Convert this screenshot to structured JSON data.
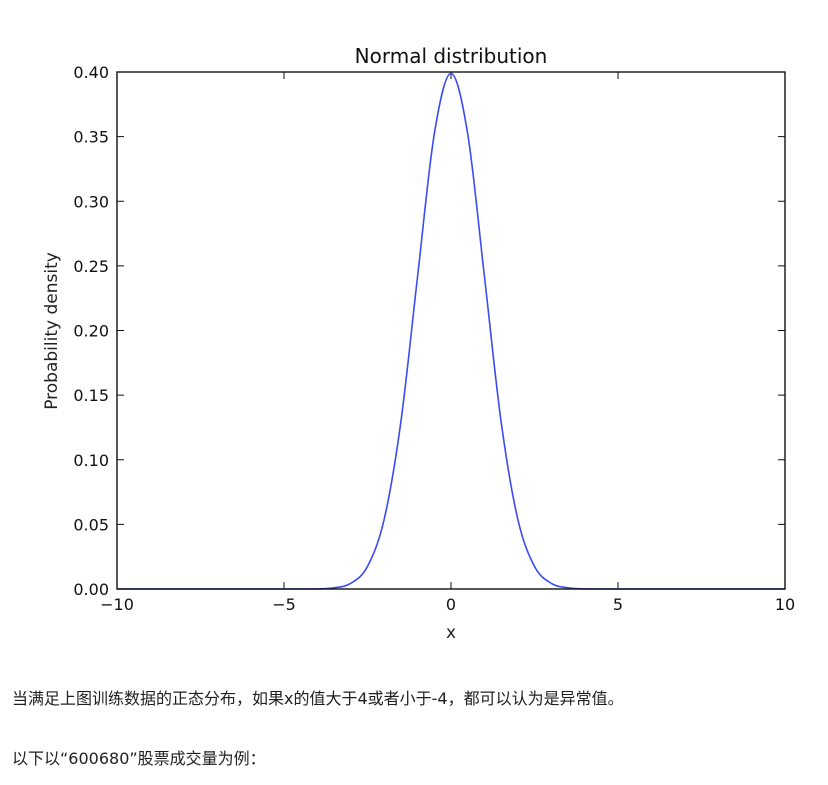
{
  "chart_data": {
    "type": "line",
    "title": "Normal distribution",
    "xlabel": "x",
    "ylabel": "Probability density",
    "xlim": [
      -10,
      10
    ],
    "ylim": [
      0,
      0.4
    ],
    "x_ticks": [
      -10,
      -5,
      0,
      5,
      10
    ],
    "x_tick_labels": [
      "−10",
      "−5",
      "0",
      "5",
      "10"
    ],
    "y_ticks": [
      0,
      0.05,
      0.1,
      0.15,
      0.2,
      0.25,
      0.3,
      0.35,
      0.4
    ],
    "y_tick_labels": [
      "0.00",
      "0.05",
      "0.10",
      "0.15",
      "0.20",
      "0.25",
      "0.30",
      "0.35",
      "0.40"
    ],
    "grid": false,
    "legend": "none",
    "series": [
      {
        "color": "#3b4bf5",
        "x": [
          -10,
          -5,
          -4,
          -3.5,
          -3,
          -2.5,
          -2,
          -1.5,
          -1,
          -0.5,
          0,
          0.5,
          1,
          1.5,
          2,
          2.5,
          3,
          3.5,
          4,
          5,
          10
        ],
        "y": [
          0,
          0,
          0.0001,
          0.0009,
          0.0044,
          0.0175,
          0.054,
          0.1295,
          0.242,
          0.3521,
          0.3989,
          0.3521,
          0.242,
          0.1295,
          0.054,
          0.0175,
          0.0044,
          0.0009,
          0.0001,
          0,
          0
        ]
      }
    ]
  },
  "text": {
    "paragraph1": "当满足上图训练数据的正态分布，如果x的值大于4或者小于-4，都可以认为是异常值。",
    "paragraph2": "以下以“600680”股票成交量为例："
  }
}
